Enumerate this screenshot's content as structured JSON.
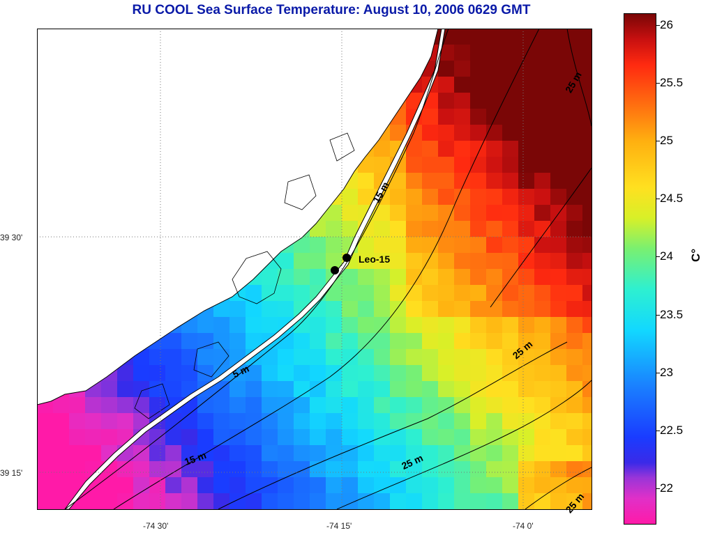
{
  "title": "RU COOL  Sea Surface Temperature:  August 10, 2006 0629 GMT",
  "colorbar": {
    "unit": "C°",
    "ticks": [
      "26",
      "25.5",
      "25",
      "24.5",
      "24",
      "23.5",
      "23",
      "22.5",
      "22"
    ],
    "range": [
      21.7,
      26.1
    ]
  },
  "axes": {
    "longitude_ticks": [
      "-74 30'",
      "-74 15'",
      "-74 0'"
    ],
    "latitude_ticks": [
      "39 30'",
      "39 15'"
    ]
  },
  "station": {
    "label": "Leo-15"
  },
  "contours": {
    "labels": [
      "15 m",
      "25 m",
      "25 m",
      "5 m",
      "15 m",
      "25 m",
      "25 m"
    ]
  },
  "colors": {
    "land": "#ffffff",
    "contour": "#000000",
    "title": "#0a1aa8"
  }
}
